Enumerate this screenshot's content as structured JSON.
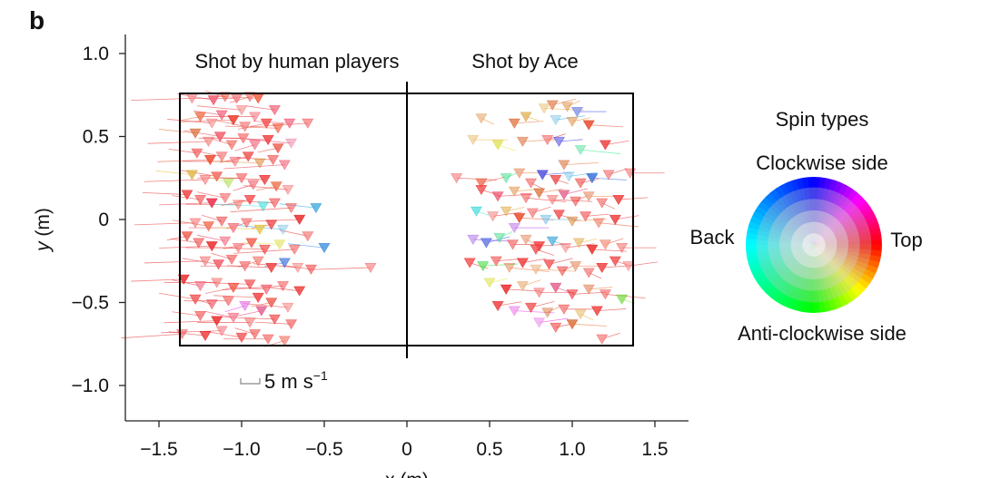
{
  "panel_label": "b",
  "chart_data": {
    "type": "scatter",
    "title": "",
    "xlabel": "x (m)",
    "ylabel": "y (m)",
    "xlim": [
      -1.7,
      1.7
    ],
    "ylim": [
      -1.22,
      1.1
    ],
    "xticks": [
      "−1.5",
      "−1.0",
      "−0.5",
      "0",
      "0.5",
      "1.0",
      "1.5"
    ],
    "xtick_values": [
      -1.5,
      -1.0,
      -0.5,
      0,
      0.5,
      1.0,
      1.5
    ],
    "yticks": [
      "1.0",
      "0.5",
      "0",
      "−0.5",
      "−1.0"
    ],
    "ytick_values": [
      1.0,
      0.5,
      0,
      -0.5,
      -1.0
    ],
    "grid": false,
    "table_outline": {
      "x": [
        -1.37,
        1.37
      ],
      "y": [
        -0.76,
        0.76
      ],
      "net_x": 0
    },
    "annotations": {
      "human": "Shot by human players",
      "ace": "Shot by Ace",
      "scale": "5 m s",
      "scale_exp": "−1"
    },
    "legend": {
      "title": "Spin types",
      "top_label": "Clockwise side",
      "bottom_label": "Anti-clockwise side",
      "left_label": "Back",
      "right_label": "Top"
    },
    "series": [
      {
        "name": "Shot by human players",
        "points": [
          [
            -1.3,
            0.73,
            0
          ],
          [
            -1.17,
            0.72,
            350
          ],
          [
            -1.1,
            0.74,
            5
          ],
          [
            -1.03,
            0.73,
            355
          ],
          [
            -0.95,
            0.74,
            0
          ],
          [
            -0.9,
            0.73,
            10
          ],
          [
            -1.25,
            0.62,
            15
          ],
          [
            -1.18,
            0.58,
            0
          ],
          [
            -1.12,
            0.63,
            350
          ],
          [
            -1.05,
            0.6,
            5
          ],
          [
            -0.98,
            0.56,
            0
          ],
          [
            -0.92,
            0.62,
            355
          ],
          [
            -0.85,
            0.58,
            0
          ],
          [
            -0.78,
            0.55,
            10
          ],
          [
            -0.71,
            0.58,
            350
          ],
          [
            -0.6,
            0.58,
            0
          ],
          [
            -1.28,
            0.52,
            20
          ],
          [
            -1.2,
            0.47,
            0
          ],
          [
            -1.13,
            0.5,
            355
          ],
          [
            -1.06,
            0.45,
            5
          ],
          [
            -0.99,
            0.49,
            0
          ],
          [
            -0.92,
            0.45,
            350
          ],
          [
            -0.84,
            0.48,
            0
          ],
          [
            -0.78,
            0.43,
            5
          ],
          [
            -0.7,
            0.46,
            340
          ],
          [
            -1.27,
            0.4,
            0
          ],
          [
            -1.19,
            0.36,
            10
          ],
          [
            -1.12,
            0.38,
            0
          ],
          [
            -1.04,
            0.35,
            355
          ],
          [
            -0.96,
            0.38,
            0
          ],
          [
            -0.89,
            0.34,
            30
          ],
          [
            -0.81,
            0.36,
            0
          ],
          [
            -0.74,
            0.33,
            350
          ],
          [
            -1.3,
            0.27,
            45
          ],
          [
            -1.22,
            0.24,
            0
          ],
          [
            -1.15,
            0.26,
            5
          ],
          [
            -1.08,
            0.22,
            80
          ],
          [
            -1.0,
            0.25,
            0
          ],
          [
            -0.93,
            0.21,
            355
          ],
          [
            -0.86,
            0.24,
            0
          ],
          [
            -0.79,
            0.2,
            15
          ],
          [
            -0.72,
            0.18,
            0
          ],
          [
            -1.25,
            0.12,
            0
          ],
          [
            -1.18,
            0.1,
            350
          ],
          [
            -1.1,
            0.13,
            0
          ],
          [
            -1.02,
            0.09,
            5
          ],
          [
            -0.95,
            0.12,
            0
          ],
          [
            -0.87,
            0.08,
            180
          ],
          [
            -0.8,
            0.1,
            0
          ],
          [
            -0.7,
            0.07,
            0
          ],
          [
            -0.55,
            0.07,
            200
          ],
          [
            -1.28,
            -0.02,
            0
          ],
          [
            -1.2,
            -0.04,
            10
          ],
          [
            -1.12,
            -0.01,
            0
          ],
          [
            -1.05,
            -0.05,
            355
          ],
          [
            -0.97,
            -0.02,
            0
          ],
          [
            -0.89,
            -0.06,
            50
          ],
          [
            -0.82,
            -0.03,
            0
          ],
          [
            -0.75,
            -0.06,
            200
          ],
          [
            -1.26,
            -0.14,
            0
          ],
          [
            -1.18,
            -0.16,
            0
          ],
          [
            -1.1,
            -0.13,
            350
          ],
          [
            -1.02,
            -0.17,
            0
          ],
          [
            -0.94,
            -0.14,
            5
          ],
          [
            -0.86,
            -0.18,
            0
          ],
          [
            -0.77,
            -0.15,
            60
          ],
          [
            -0.68,
            -0.18,
            0
          ],
          [
            -0.5,
            -0.17,
            210
          ],
          [
            -1.22,
            -0.25,
            0
          ],
          [
            -1.14,
            -0.27,
            355
          ],
          [
            -1.06,
            -0.24,
            0
          ],
          [
            -0.98,
            -0.28,
            0
          ],
          [
            -0.9,
            -0.25,
            5
          ],
          [
            -0.82,
            -0.29,
            0
          ],
          [
            -0.74,
            -0.26,
            220
          ],
          [
            -0.66,
            -0.29,
            0
          ],
          [
            -0.58,
            -0.3,
            0
          ],
          [
            -1.35,
            -0.36,
            0
          ],
          [
            -1.25,
            -0.4,
            350
          ],
          [
            -1.15,
            -0.38,
            0
          ],
          [
            -1.05,
            -0.41,
            5
          ],
          [
            -0.95,
            -0.39,
            0
          ],
          [
            -0.85,
            -0.42,
            355
          ],
          [
            -0.75,
            -0.4,
            0
          ],
          [
            -0.65,
            -0.43,
            0
          ],
          [
            -0.22,
            -0.29,
            0
          ],
          [
            -1.28,
            -0.48,
            0
          ],
          [
            -1.18,
            -0.51,
            355
          ],
          [
            -1.08,
            -0.49,
            0
          ],
          [
            -0.98,
            -0.52,
            300
          ],
          [
            -0.9,
            -0.47,
            0
          ],
          [
            -0.82,
            -0.5,
            5
          ],
          [
            -0.72,
            -0.53,
            0
          ],
          [
            -1.25,
            -0.58,
            0
          ],
          [
            -1.15,
            -0.61,
            0
          ],
          [
            -1.05,
            -0.59,
            350
          ],
          [
            -0.95,
            -0.62,
            0
          ],
          [
            -0.88,
            -0.55,
            340
          ],
          [
            -0.8,
            -0.6,
            0
          ],
          [
            -0.7,
            -0.63,
            0
          ],
          [
            -1.36,
            -0.69,
            0
          ],
          [
            -1.22,
            -0.7,
            0
          ],
          [
            -1.12,
            -0.67,
            355
          ],
          [
            -1.0,
            -0.71,
            0
          ],
          [
            -0.92,
            -0.69,
            0
          ],
          [
            -0.84,
            -0.72,
            0
          ],
          [
            -0.74,
            -0.73,
            5
          ],
          [
            -1.33,
            0.15,
            0
          ],
          [
            -1.33,
            -0.1,
            5
          ],
          [
            -1.0,
            0.66,
            0
          ],
          [
            -0.8,
            0.66,
            350
          ],
          [
            -0.65,
            0.0,
            0
          ],
          [
            -0.6,
            -0.1,
            0
          ]
        ]
      },
      {
        "name": "Shot by Ace",
        "points": [
          [
            0.83,
            0.67,
            40
          ],
          [
            0.88,
            0.69,
            20
          ],
          [
            0.97,
            0.68,
            30
          ],
          [
            1.03,
            0.65,
            230
          ],
          [
            0.45,
            0.61,
            30
          ],
          [
            0.65,
            0.58,
            20
          ],
          [
            0.72,
            0.62,
            40
          ],
          [
            0.9,
            0.6,
            200
          ],
          [
            1.0,
            0.59,
            30
          ],
          [
            1.1,
            0.57,
            10
          ],
          [
            0.85,
            0.48,
            0
          ],
          [
            0.4,
            0.48,
            40
          ],
          [
            0.55,
            0.45,
            60
          ],
          [
            0.7,
            0.47,
            20
          ],
          [
            0.92,
            0.47,
            240
          ],
          [
            1.05,
            0.42,
            150
          ],
          [
            1.2,
            0.45,
            0
          ],
          [
            0.3,
            0.25,
            0
          ],
          [
            0.45,
            0.22,
            10
          ],
          [
            0.6,
            0.25,
            150
          ],
          [
            0.68,
            0.28,
            20
          ],
          [
            0.75,
            0.22,
            0
          ],
          [
            0.82,
            0.27,
            240
          ],
          [
            0.9,
            0.24,
            0
          ],
          [
            0.98,
            0.26,
            200
          ],
          [
            1.05,
            0.22,
            0
          ],
          [
            1.12,
            0.25,
            220
          ],
          [
            1.22,
            0.27,
            0
          ],
          [
            1.35,
            0.28,
            0
          ],
          [
            0.45,
            0.18,
            0
          ],
          [
            0.55,
            0.14,
            350
          ],
          [
            0.65,
            0.17,
            30
          ],
          [
            0.72,
            0.13,
            0
          ],
          [
            0.8,
            0.16,
            20
          ],
          [
            0.88,
            0.12,
            0
          ],
          [
            0.95,
            0.15,
            340
          ],
          [
            1.02,
            0.11,
            0
          ],
          [
            1.1,
            0.14,
            20
          ],
          [
            1.18,
            0.1,
            0
          ],
          [
            1.28,
            0.12,
            0
          ],
          [
            0.42,
            0.05,
            180
          ],
          [
            0.52,
            0.02,
            0
          ],
          [
            0.6,
            0.05,
            40
          ],
          [
            0.68,
            0.01,
            10
          ],
          [
            0.76,
            0.04,
            0
          ],
          [
            0.84,
            0.0,
            200
          ],
          [
            0.92,
            0.03,
            0
          ],
          [
            1.0,
            -0.01,
            30
          ],
          [
            1.08,
            0.02,
            0
          ],
          [
            1.16,
            -0.02,
            10
          ],
          [
            1.26,
            0.0,
            0
          ],
          [
            0.4,
            -0.12,
            270
          ],
          [
            0.48,
            -0.14,
            230
          ],
          [
            0.56,
            -0.11,
            150
          ],
          [
            0.64,
            -0.15,
            0
          ],
          [
            0.72,
            -0.12,
            20
          ],
          [
            0.8,
            -0.16,
            0
          ],
          [
            0.88,
            -0.13,
            200
          ],
          [
            0.96,
            -0.17,
            0
          ],
          [
            1.04,
            -0.14,
            40
          ],
          [
            1.12,
            -0.18,
            0
          ],
          [
            1.2,
            -0.15,
            10
          ],
          [
            1.3,
            -0.17,
            0
          ],
          [
            0.38,
            -0.26,
            0
          ],
          [
            0.46,
            -0.28,
            120
          ],
          [
            0.54,
            -0.25,
            0
          ],
          [
            0.62,
            -0.29,
            20
          ],
          [
            0.7,
            -0.26,
            0
          ],
          [
            0.78,
            -0.3,
            30
          ],
          [
            0.86,
            -0.27,
            0
          ],
          [
            0.94,
            -0.31,
            0
          ],
          [
            1.02,
            -0.28,
            20
          ],
          [
            1.1,
            -0.32,
            0
          ],
          [
            1.18,
            -0.29,
            0
          ],
          [
            1.26,
            -0.25,
            0
          ],
          [
            1.34,
            -0.28,
            0
          ],
          [
            0.5,
            -0.38,
            60
          ],
          [
            0.6,
            -0.42,
            0
          ],
          [
            0.7,
            -0.4,
            30
          ],
          [
            0.8,
            -0.44,
            0
          ],
          [
            0.9,
            -0.41,
            340
          ],
          [
            1.0,
            -0.45,
            0
          ],
          [
            1.1,
            -0.42,
            20
          ],
          [
            1.2,
            -0.45,
            0
          ],
          [
            0.55,
            -0.52,
            0
          ],
          [
            0.65,
            -0.55,
            300
          ],
          [
            0.75,
            -0.53,
            0
          ],
          [
            0.85,
            -0.56,
            20
          ],
          [
            0.95,
            -0.54,
            0
          ],
          [
            1.05,
            -0.57,
            40
          ],
          [
            1.15,
            -0.55,
            0
          ],
          [
            1.3,
            -0.48,
            100
          ],
          [
            0.8,
            -0.62,
            300
          ],
          [
            0.9,
            -0.65,
            0
          ],
          [
            1.0,
            -0.63,
            20
          ],
          [
            1.18,
            -0.72,
            0
          ],
          [
            0.65,
            -0.05,
            280
          ],
          [
            0.78,
            -0.18,
            0
          ],
          [
            0.95,
            0.33,
            20
          ]
        ]
      }
    ]
  }
}
